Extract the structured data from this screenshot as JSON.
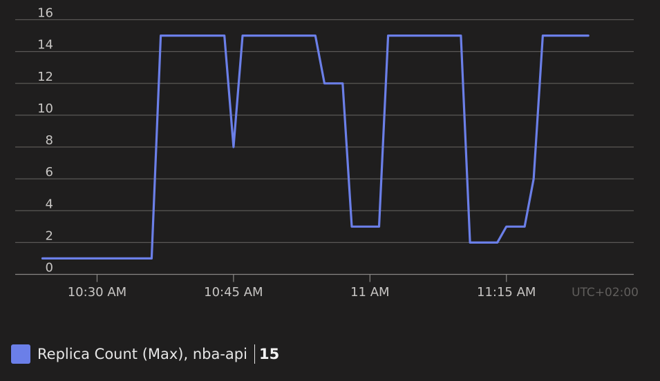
{
  "chart_data": {
    "type": "line",
    "series": [
      {
        "name": "Replica Count (Max), nba-api",
        "color": "#6b7fe8",
        "points": [
          [
            "10:24",
            1
          ],
          [
            "10:25",
            1
          ],
          [
            "10:36",
            1
          ],
          [
            "10:37",
            15
          ],
          [
            "10:44",
            15
          ],
          [
            "10:45",
            8
          ],
          [
            "10:46",
            15
          ],
          [
            "10:54",
            15
          ],
          [
            "10:55",
            12
          ],
          [
            "10:57",
            12
          ],
          [
            "10:58",
            3
          ],
          [
            "11:01",
            3
          ],
          [
            "11:02",
            15
          ],
          [
            "11:10",
            15
          ],
          [
            "11:11",
            2
          ],
          [
            "11:14",
            2
          ],
          [
            "11:15",
            3
          ],
          [
            "11:17",
            3
          ],
          [
            "11:18",
            6
          ],
          [
            "11:19",
            15
          ],
          [
            "11:24",
            15
          ]
        ]
      }
    ],
    "x_ticks": [
      {
        "time": "10:30",
        "label": "10:30 AM"
      },
      {
        "time": "10:45",
        "label": "10:45 AM"
      },
      {
        "time": "11:00",
        "label": "11 AM"
      },
      {
        "time": "11:15",
        "label": "11:15 AM"
      }
    ],
    "xlim": [
      "10:21",
      "11:29"
    ],
    "y_ticks": [
      0,
      2,
      4,
      6,
      8,
      10,
      12,
      14,
      16
    ],
    "ylim": [
      0,
      16
    ],
    "timezone_label": "UTC+02:00",
    "grid": true,
    "legend": {
      "position": "bottom-left",
      "label": "Replica Count (Max), nba-api",
      "value": "15"
    }
  }
}
